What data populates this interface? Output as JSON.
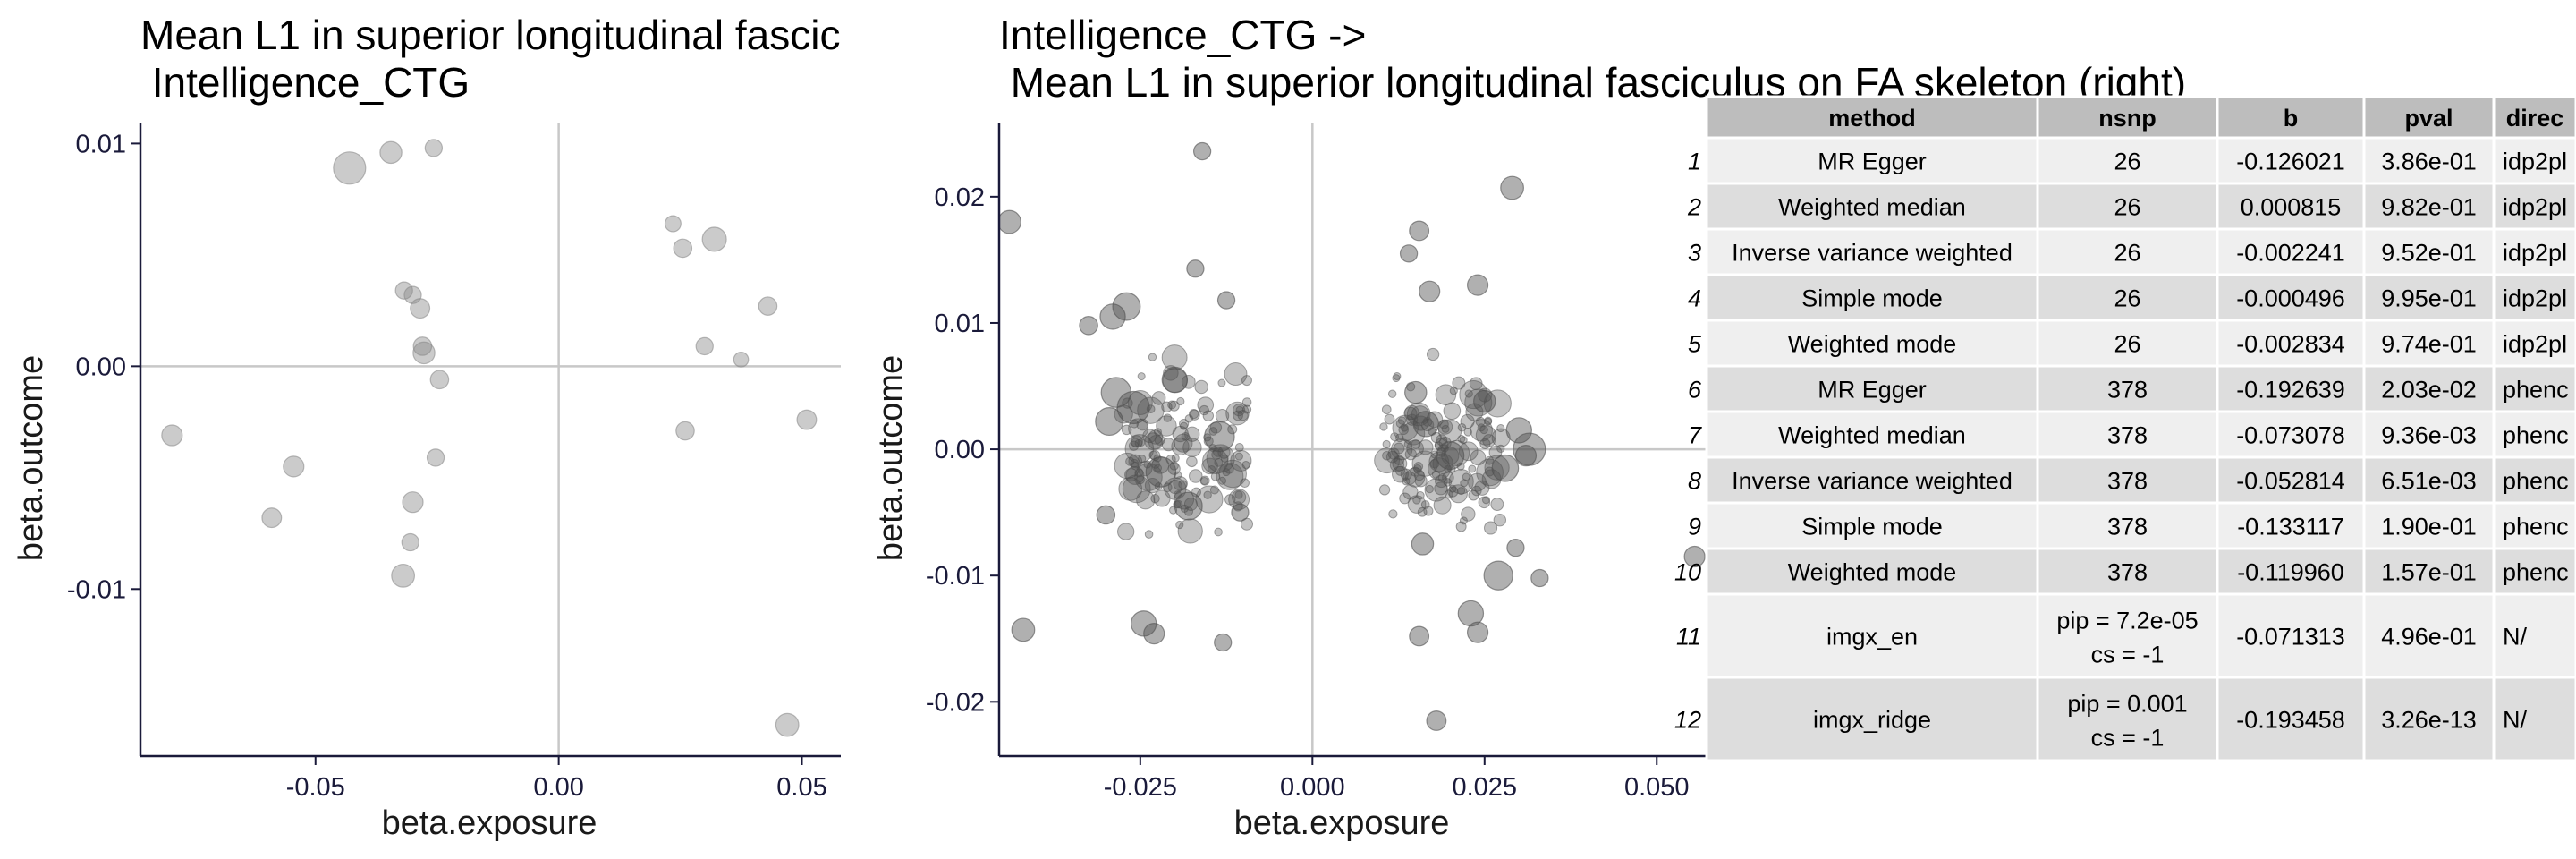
{
  "chart_data": [
    {
      "type": "scatter",
      "title": "Mean L1 in superior longitudinal fascic",
      "subtitle": " Intelligence_CTG",
      "xlabel": "beta.exposure",
      "ylabel": "beta.outcome",
      "xlim": [
        -0.086,
        0.058
      ],
      "ylim": [
        -0.0175,
        0.0109
      ],
      "xticks": [
        -0.05,
        0.0,
        0.05
      ],
      "xtick_labels": [
        "-0.05",
        "0.00",
        "0.05"
      ],
      "yticks": [
        -0.01,
        0.0,
        0.01
      ],
      "ytick_labels": [
        "-0.01",
        "0.00",
        "0.01"
      ],
      "grid": false,
      "reference_lines": {
        "x": 0,
        "y": 0
      },
      "point_color": "#8c8c8c",
      "points": [
        {
          "x": -0.043,
          "y": 0.0089,
          "se": 1.0
        },
        {
          "x": -0.0345,
          "y": 0.0096,
          "se": 0.55
        },
        {
          "x": -0.0257,
          "y": 0.0098,
          "se": 0.35
        },
        {
          "x": -0.0318,
          "y": 0.0034,
          "se": 0.35
        },
        {
          "x": -0.03,
          "y": 0.0032,
          "se": 0.35
        },
        {
          "x": -0.0285,
          "y": 0.0026,
          "se": 0.45
        },
        {
          "x": -0.028,
          "y": 0.0009,
          "se": 0.4
        },
        {
          "x": -0.0277,
          "y": 0.0006,
          "se": 0.55
        },
        {
          "x": -0.0245,
          "y": -0.0006,
          "se": 0.4
        },
        {
          "x": -0.0253,
          "y": -0.0041,
          "se": 0.35
        },
        {
          "x": -0.03,
          "y": -0.0061,
          "se": 0.5
        },
        {
          "x": -0.0305,
          "y": -0.0079,
          "se": 0.35
        },
        {
          "x": -0.032,
          "y": -0.0094,
          "se": 0.6
        },
        {
          "x": -0.0545,
          "y": -0.0045,
          "se": 0.5
        },
        {
          "x": -0.059,
          "y": -0.0068,
          "se": 0.45
        },
        {
          "x": -0.0795,
          "y": -0.0031,
          "se": 0.5
        },
        {
          "x": 0.0235,
          "y": 0.0064,
          "se": 0.3
        },
        {
          "x": 0.0255,
          "y": 0.0053,
          "se": 0.4
        },
        {
          "x": 0.032,
          "y": 0.0057,
          "se": 0.65
        },
        {
          "x": 0.043,
          "y": 0.0027,
          "se": 0.4
        },
        {
          "x": 0.03,
          "y": 0.0009,
          "se": 0.35
        },
        {
          "x": 0.0375,
          "y": 0.0003,
          "se": 0.25
        },
        {
          "x": 0.026,
          "y": -0.0029,
          "se": 0.4
        },
        {
          "x": 0.051,
          "y": -0.0024,
          "se": 0.45
        },
        {
          "x": 0.047,
          "y": -0.0161,
          "se": 0.6
        }
      ]
    },
    {
      "type": "scatter",
      "title": "Intelligence_CTG ->",
      "subtitle": " Mean L1 in superior longitudinal fasciculus on FA skeleton (right)",
      "xlabel": "beta.exposure",
      "ylabel": "beta.outcome",
      "xlim": [
        -0.0455,
        0.0575
      ],
      "ylim": [
        -0.0243,
        0.0258
      ],
      "xticks": [
        -0.025,
        0.0,
        0.025,
        0.05
      ],
      "xtick_labels": [
        "-0.025",
        "0.000",
        "0.025",
        "0.050"
      ],
      "yticks": [
        -0.02,
        -0.01,
        0.0,
        0.01,
        0.02
      ],
      "ytick_labels": [
        "-0.02",
        "-0.01",
        "0.00",
        "0.01",
        "0.02"
      ],
      "grid": false,
      "reference_lines": {
        "x": 0,
        "y": 0
      },
      "point_color": "#505050",
      "note": "378 instruments clustered around beta.exposure -0.028..-0.010 and 0.010..0.028",
      "points": [
        {
          "x": -0.044,
          "y": 0.018,
          "se": 0.6
        },
        {
          "x": -0.042,
          "y": -0.0143,
          "se": 0.6
        },
        {
          "x": -0.0325,
          "y": 0.0098,
          "se": 0.4
        },
        {
          "x": -0.029,
          "y": 0.0105,
          "se": 0.7
        },
        {
          "x": -0.027,
          "y": 0.0113,
          "se": 0.8
        },
        {
          "x": -0.0285,
          "y": 0.0045,
          "se": 0.9
        },
        {
          "x": -0.026,
          "y": 0.0033,
          "se": 1.0
        },
        {
          "x": -0.0295,
          "y": 0.0022,
          "se": 0.8
        },
        {
          "x": -0.03,
          "y": -0.0052,
          "se": 0.4
        },
        {
          "x": -0.0245,
          "y": -0.0138,
          "se": 0.7
        },
        {
          "x": -0.023,
          "y": -0.0146,
          "se": 0.5
        },
        {
          "x": -0.022,
          "y": -0.0018,
          "se": 0.9
        },
        {
          "x": -0.02,
          "y": 0.0055,
          "se": 0.7
        },
        {
          "x": -0.018,
          "y": -0.0045,
          "se": 0.8
        },
        {
          "x": -0.016,
          "y": 0.0236,
          "se": 0.35
        },
        {
          "x": -0.017,
          "y": 0.0143,
          "se": 0.35
        },
        {
          "x": -0.013,
          "y": -0.0153,
          "se": 0.35
        },
        {
          "x": -0.0125,
          "y": 0.0118,
          "se": 0.35
        },
        {
          "x": -0.0135,
          "y": 0.001,
          "se": 0.9
        },
        {
          "x": -0.0105,
          "y": -0.005,
          "se": 0.35
        },
        {
          "x": 0.014,
          "y": 0.0155,
          "se": 0.35
        },
        {
          "x": 0.0155,
          "y": 0.0173,
          "se": 0.45
        },
        {
          "x": 0.017,
          "y": 0.0125,
          "se": 0.5
        },
        {
          "x": 0.015,
          "y": 0.0045,
          "se": 0.55
        },
        {
          "x": 0.0165,
          "y": 0.002,
          "se": 0.7
        },
        {
          "x": 0.02,
          "y": -0.0005,
          "se": 0.8
        },
        {
          "x": 0.016,
          "y": -0.0075,
          "se": 0.55
        },
        {
          "x": 0.018,
          "y": -0.0215,
          "se": 0.45
        },
        {
          "x": 0.0155,
          "y": -0.0148,
          "se": 0.45
        },
        {
          "x": 0.023,
          "y": -0.013,
          "se": 0.7
        },
        {
          "x": 0.024,
          "y": -0.0145,
          "se": 0.5
        },
        {
          "x": 0.027,
          "y": -0.01,
          "se": 0.85
        },
        {
          "x": 0.025,
          "y": 0.0038,
          "se": 0.55
        },
        {
          "x": 0.024,
          "y": 0.013,
          "se": 0.5
        },
        {
          "x": 0.029,
          "y": 0.0207,
          "se": 0.6
        },
        {
          "x": 0.028,
          "y": -0.0015,
          "se": 0.75
        },
        {
          "x": 0.031,
          "y": -0.0005,
          "se": 0.5
        },
        {
          "x": 0.03,
          "y": 0.0015,
          "se": 0.7
        },
        {
          "x": 0.033,
          "y": -0.0102,
          "se": 0.35
        },
        {
          "x": 0.0295,
          "y": -0.0078,
          "se": 0.35
        },
        {
          "x": 0.0315,
          "y": 0.0,
          "se": 1.0
        },
        {
          "x": 0.0555,
          "y": -0.0085,
          "se": 0.5
        }
      ]
    },
    {
      "type": "table",
      "columns": [
        "method",
        "nsnp",
        "b",
        "pval",
        "direc"
      ],
      "rows": [
        {
          "idx": "1",
          "cells": [
            "MR Egger",
            "26",
            "-0.126021",
            "3.86e-01",
            "idp2pl"
          ]
        },
        {
          "idx": "2",
          "cells": [
            "Weighted median",
            "26",
            "0.000815",
            "9.82e-01",
            "idp2pl"
          ]
        },
        {
          "idx": "3",
          "cells": [
            "Inverse variance weighted",
            "26",
            "-0.002241",
            "9.52e-01",
            "idp2pl"
          ]
        },
        {
          "idx": "4",
          "cells": [
            "Simple mode",
            "26",
            "-0.000496",
            "9.95e-01",
            "idp2pl"
          ]
        },
        {
          "idx": "5",
          "cells": [
            "Weighted mode",
            "26",
            "-0.002834",
            "9.74e-01",
            "idp2pl"
          ]
        },
        {
          "idx": "6",
          "cells": [
            "MR Egger",
            "378",
            "-0.192639",
            "2.03e-02",
            "phenc"
          ]
        },
        {
          "idx": "7",
          "cells": [
            "Weighted median",
            "378",
            "-0.073078",
            "9.36e-03",
            "phenc"
          ]
        },
        {
          "idx": "8",
          "cells": [
            "Inverse variance weighted",
            "378",
            "-0.052814",
            "6.51e-03",
            "phenc"
          ]
        },
        {
          "idx": "9",
          "cells": [
            "Simple mode",
            "378",
            "-0.133117",
            "1.90e-01",
            "phenc"
          ]
        },
        {
          "idx": "10",
          "cells": [
            "Weighted mode",
            "378",
            "-0.119960",
            "1.57e-01",
            "phenc"
          ]
        },
        {
          "idx": "11",
          "cells": [
            "imgx_en",
            [
              "pip = 7.2e-05",
              "cs = -1"
            ],
            "-0.071313",
            "4.96e-01",
            "N/"
          ]
        },
        {
          "idx": "12",
          "cells": [
            "imgx_ridge",
            [
              "pip = 0.001",
              "cs = -1"
            ],
            "-0.193458",
            "3.26e-13",
            "N/"
          ]
        }
      ],
      "colors": {
        "header": "#bdbdbd",
        "row_light": "#efefef",
        "row_dark": "#dddddd",
        "border": "#ffffff"
      }
    }
  ]
}
